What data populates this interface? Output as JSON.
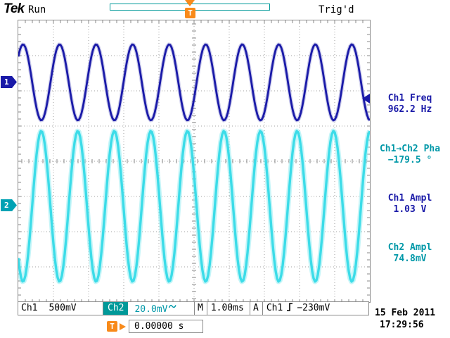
{
  "colors": {
    "ch1": "#1A1AA8",
    "ch1_halo": "rgba(40,40,170,0.22)",
    "ch2": "#3CDCE8",
    "ch2_halo": "rgba(140,235,242,0.5)",
    "ch2_text": "#0098A8",
    "ch2_marker": "#00A2B4",
    "teal": "#009999",
    "orange": "#F88A1A",
    "grid": "#A0A0A0",
    "frame": "#8A8A8A"
  },
  "top_bar": {
    "logo": "Tek",
    "acq_state": "Run",
    "trigger_status": "Trig'd",
    "trigger_marker": "T"
  },
  "channel_markers": {
    "ch1": "1",
    "ch2": "2"
  },
  "measurements": [
    {
      "label": "Ch1 Freq",
      "value": "962.2 Hz",
      "channel": "ch1"
    },
    {
      "label": "Ch1→Ch2 Pha",
      "value": "−179.5 °",
      "channel": "ch2"
    },
    {
      "label": "Ch1 Ampl",
      "value": "1.03 V",
      "channel": "ch1"
    },
    {
      "label": "Ch2 Ampl",
      "value": "74.8mV",
      "channel": "ch2"
    }
  ],
  "status_bar": {
    "ch1_label": "Ch1",
    "ch1_scale": "500mV",
    "ch2_label": "Ch2",
    "ch2_scale": "20.0mV",
    "timebase_label": "M",
    "timebase": "1.00ms",
    "trigger_group_label": "A",
    "trigger_source": "Ch1",
    "trigger_level": "−230mV",
    "date": "15 Feb 2011",
    "time": "17:29:56"
  },
  "horizontal_readout": {
    "marker": "T",
    "delay": "0.00000 s"
  },
  "icons": {
    "ch2_coupling": "ac-waveform",
    "trigger_slope": "rising-edge",
    "trigger_position": "down-arrow",
    "trigger_level_pointer": "left-arrow"
  },
  "chart_data": {
    "type": "line",
    "title": "",
    "x_divisions": 10,
    "y_divisions": 8,
    "timebase_s_per_div": 0.001,
    "total_time_s": 0.01,
    "grid": "dotted",
    "series": [
      {
        "name": "Ch1",
        "freq_hz": 962.2,
        "volts_per_div": 0.5,
        "amplitude_vpp_v": 1.03,
        "phase_deg": 0,
        "center_div_from_top": 1.76,
        "amplitude_div": 1.08,
        "color_key": "ch1"
      },
      {
        "name": "Ch2",
        "freq_hz": 962.2,
        "volts_per_div": 0.02,
        "amplitude_vpp_v": 0.0748,
        "phase_deg": -179.5,
        "center_div_from_top": 5.28,
        "amplitude_div": 2.14,
        "color_key": "ch2"
      }
    ],
    "trigger": {
      "source": "Ch1",
      "level_v": -0.23,
      "slope": "rising",
      "position_div": 5
    }
  }
}
